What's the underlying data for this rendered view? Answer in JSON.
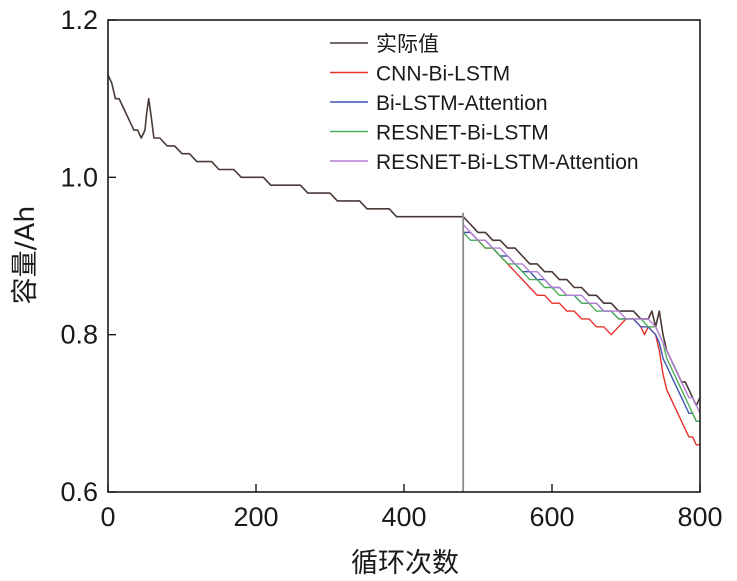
{
  "chart_data": {
    "type": "line",
    "title": "",
    "xlabel": "循环次数",
    "ylabel": "容量/Ah",
    "xlim": [
      0,
      800
    ],
    "ylim": [
      0.6,
      1.2
    ],
    "xticks": [
      0,
      200,
      400,
      600,
      800
    ],
    "xtick_labels": [
      "0",
      "200",
      "400",
      "600",
      "800"
    ],
    "yticks": [
      0.6,
      0.8,
      1.0,
      1.2
    ],
    "ytick_labels": [
      "0.6",
      "0.8",
      "1.0",
      "1.2"
    ],
    "grid": false,
    "legend_position": "top-right",
    "split_line_x": 480,
    "series": [
      {
        "name": "实际值",
        "color": "#4a3a36",
        "x": [
          0,
          5,
          10,
          15,
          20,
          25,
          30,
          35,
          40,
          45,
          50,
          52,
          55,
          58,
          62,
          70,
          80,
          90,
          100,
          110,
          120,
          130,
          140,
          150,
          160,
          170,
          180,
          190,
          200,
          210,
          220,
          230,
          240,
          250,
          260,
          270,
          280,
          290,
          300,
          310,
          320,
          330,
          340,
          350,
          360,
          370,
          380,
          390,
          400,
          410,
          420,
          430,
          440,
          450,
          460,
          470,
          480,
          490,
          500,
          510,
          520,
          530,
          540,
          550,
          560,
          570,
          580,
          590,
          600,
          610,
          620,
          630,
          640,
          650,
          660,
          670,
          680,
          690,
          700,
          710,
          720,
          730,
          735,
          740,
          745,
          750,
          755,
          760,
          765,
          770,
          775,
          780,
          785,
          790,
          795,
          800
        ],
        "y": [
          1.13,
          1.12,
          1.1,
          1.1,
          1.09,
          1.08,
          1.07,
          1.06,
          1.06,
          1.05,
          1.06,
          1.08,
          1.1,
          1.08,
          1.05,
          1.05,
          1.04,
          1.04,
          1.03,
          1.03,
          1.02,
          1.02,
          1.02,
          1.01,
          1.01,
          1.01,
          1.0,
          1.0,
          1.0,
          1.0,
          0.99,
          0.99,
          0.99,
          0.99,
          0.99,
          0.98,
          0.98,
          0.98,
          0.98,
          0.97,
          0.97,
          0.97,
          0.97,
          0.96,
          0.96,
          0.96,
          0.96,
          0.95,
          0.95,
          0.95,
          0.95,
          0.95,
          0.95,
          0.95,
          0.95,
          0.95,
          0.95,
          0.94,
          0.93,
          0.93,
          0.92,
          0.92,
          0.91,
          0.91,
          0.9,
          0.89,
          0.89,
          0.88,
          0.88,
          0.87,
          0.87,
          0.86,
          0.86,
          0.85,
          0.85,
          0.84,
          0.84,
          0.83,
          0.83,
          0.83,
          0.82,
          0.82,
          0.83,
          0.81,
          0.83,
          0.8,
          0.78,
          0.77,
          0.76,
          0.75,
          0.74,
          0.74,
          0.73,
          0.72,
          0.71,
          0.72
        ]
      },
      {
        "name": "CNN-Bi-LSTM",
        "color": "#e8302a",
        "x": [
          480,
          490,
          500,
          510,
          520,
          530,
          540,
          550,
          560,
          570,
          580,
          590,
          600,
          610,
          620,
          630,
          640,
          650,
          660,
          670,
          680,
          690,
          700,
          710,
          720,
          725,
          730,
          740,
          745,
          750,
          755,
          760,
          765,
          770,
          775,
          780,
          785,
          790,
          795,
          800
        ],
        "y": [
          0.93,
          0.93,
          0.92,
          0.91,
          0.91,
          0.9,
          0.89,
          0.88,
          0.87,
          0.86,
          0.85,
          0.85,
          0.84,
          0.84,
          0.83,
          0.83,
          0.82,
          0.82,
          0.81,
          0.81,
          0.8,
          0.81,
          0.82,
          0.82,
          0.81,
          0.8,
          0.81,
          0.8,
          0.78,
          0.75,
          0.73,
          0.72,
          0.71,
          0.7,
          0.69,
          0.68,
          0.67,
          0.67,
          0.66,
          0.66
        ]
      },
      {
        "name": "Bi-LSTM-Attention",
        "color": "#3c55b0",
        "x": [
          480,
          490,
          500,
          510,
          520,
          530,
          540,
          550,
          560,
          570,
          580,
          590,
          600,
          610,
          620,
          630,
          640,
          650,
          660,
          670,
          680,
          690,
          700,
          710,
          720,
          730,
          740,
          745,
          750,
          755,
          760,
          765,
          770,
          775,
          780,
          785,
          790,
          795,
          800
        ],
        "y": [
          0.93,
          0.93,
          0.92,
          0.92,
          0.91,
          0.9,
          0.9,
          0.89,
          0.88,
          0.88,
          0.87,
          0.87,
          0.86,
          0.86,
          0.85,
          0.85,
          0.84,
          0.84,
          0.84,
          0.83,
          0.83,
          0.82,
          0.82,
          0.82,
          0.81,
          0.81,
          0.8,
          0.79,
          0.77,
          0.76,
          0.75,
          0.74,
          0.73,
          0.72,
          0.71,
          0.7,
          0.7,
          0.69,
          0.69
        ]
      },
      {
        "name": "RESNET-Bi-LSTM",
        "color": "#4caf5a",
        "x": [
          480,
          490,
          500,
          510,
          520,
          530,
          540,
          550,
          560,
          570,
          580,
          590,
          600,
          610,
          620,
          630,
          640,
          650,
          660,
          670,
          680,
          690,
          700,
          710,
          720,
          730,
          740,
          745,
          750,
          755,
          760,
          765,
          770,
          775,
          780,
          785,
          790,
          795,
          800
        ],
        "y": [
          0.93,
          0.92,
          0.92,
          0.91,
          0.91,
          0.9,
          0.89,
          0.89,
          0.88,
          0.87,
          0.87,
          0.86,
          0.86,
          0.85,
          0.85,
          0.85,
          0.84,
          0.84,
          0.83,
          0.83,
          0.83,
          0.82,
          0.82,
          0.82,
          0.82,
          0.81,
          0.81,
          0.8,
          0.79,
          0.77,
          0.76,
          0.75,
          0.74,
          0.73,
          0.72,
          0.71,
          0.7,
          0.69,
          0.69
        ]
      },
      {
        "name": "RESNET-Bi-LSTM-Attention",
        "color": "#b57fd6",
        "x": [
          480,
          490,
          500,
          510,
          520,
          530,
          540,
          550,
          560,
          570,
          580,
          590,
          600,
          610,
          620,
          630,
          640,
          650,
          660,
          670,
          680,
          690,
          700,
          710,
          720,
          730,
          740,
          745,
          750,
          755,
          760,
          765,
          770,
          775,
          780,
          785,
          790,
          795,
          800
        ],
        "y": [
          0.94,
          0.93,
          0.92,
          0.92,
          0.91,
          0.91,
          0.9,
          0.89,
          0.89,
          0.88,
          0.88,
          0.87,
          0.86,
          0.86,
          0.85,
          0.85,
          0.85,
          0.84,
          0.84,
          0.83,
          0.83,
          0.83,
          0.82,
          0.82,
          0.82,
          0.82,
          0.81,
          0.8,
          0.79,
          0.78,
          0.77,
          0.76,
          0.75,
          0.74,
          0.73,
          0.72,
          0.72,
          0.71,
          0.7
        ]
      }
    ]
  }
}
